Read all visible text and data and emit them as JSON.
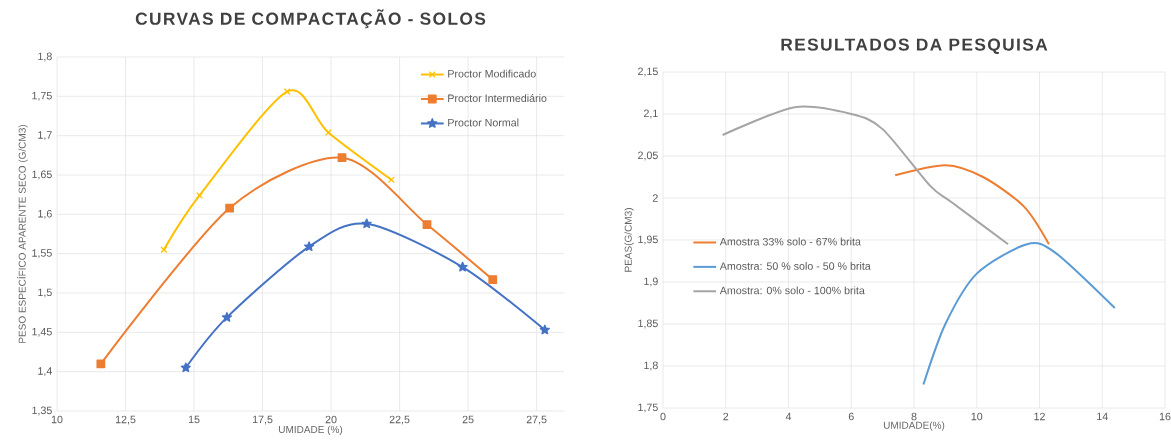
{
  "chart_data": [
    {
      "type": "line",
      "title": "CURVAS DE COMPACTAÇÃO - SOLOS",
      "xlabel": "UMIDADE (%)",
      "ylabel": "PESO ESPECÍFICO APARENTE SECO (G/CM3)",
      "xlim": [
        10,
        28.5
      ],
      "ylim": [
        1.35,
        1.8
      ],
      "xticks": [
        10,
        {
          "value": 12.5,
          "label": "12,5"
        },
        15,
        {
          "value": 17.5,
          "label": "17,5"
        },
        20,
        {
          "value": 22.5,
          "label": "22,5"
        },
        25,
        {
          "value": 27.5,
          "label": "27,5"
        }
      ],
      "yticks": [
        {
          "value": 1.35,
          "label": "1,35"
        },
        {
          "value": 1.4,
          "label": "1,4"
        },
        {
          "value": 1.45,
          "label": "1,45"
        },
        {
          "value": 1.5,
          "label": "1,5"
        },
        {
          "value": 1.55,
          "label": "1,55"
        },
        {
          "value": 1.6,
          "label": "1,6"
        },
        {
          "value": 1.65,
          "label": "1,65"
        },
        {
          "value": 1.7,
          "label": "1,7"
        },
        {
          "value": 1.75,
          "label": "1,75"
        },
        {
          "value": 1.8,
          "label": "1,8"
        }
      ],
      "grid": true,
      "legend": "top right",
      "series": [
        {
          "name": "Proctor Modificado",
          "color": "#ffc000",
          "marker": "cross",
          "x": [
            13.9,
            15.2,
            18.4,
            19.9,
            22.2
          ],
          "values": [
            1.555,
            1.624,
            1.756,
            1.704,
            1.644
          ]
        },
        {
          "name": "Proctor Intermediário",
          "color": "#ed7d31",
          "marker": "square",
          "x": [
            11.6,
            16.3,
            20.4,
            23.5,
            25.9
          ],
          "values": [
            1.41,
            1.608,
            1.672,
            1.587,
            1.517
          ]
        },
        {
          "name": "Proctor Normal",
          "color": "#4472c4",
          "marker": "star",
          "x": [
            14.7,
            16.2,
            19.2,
            21.3,
            24.8,
            27.8
          ],
          "values": [
            1.405,
            1.469,
            1.559,
            1.588,
            1.533,
            1.453
          ]
        }
      ]
    },
    {
      "type": "line",
      "title": "RESULTADOS DA PESQUISA",
      "xlabel": "UMIDADE(%)",
      "ylabel": "PEAS(G/CM3)",
      "xlim": [
        0,
        16
      ],
      "ylim": [
        1.75,
        2.15
      ],
      "xticks": [
        0,
        2,
        4,
        6,
        8,
        10,
        12,
        14,
        16
      ],
      "yticks": [
        {
          "value": 1.75,
          "label": "1,75"
        },
        {
          "value": 1.8,
          "label": "1,8"
        },
        {
          "value": 1.85,
          "label": "1,85"
        },
        {
          "value": 1.9,
          "label": "1,9"
        },
        {
          "value": 1.95,
          "label": "1,95"
        },
        2,
        {
          "value": 2.05,
          "label": "2,05"
        },
        {
          "value": 2.1,
          "label": "2,1"
        },
        {
          "value": 2.15,
          "label": "2,15"
        }
      ],
      "grid": true,
      "legend": "left",
      "marker": "none",
      "series": [
        {
          "name": "Amostra 33% solo - 67% brita",
          "color": "#ed7d31",
          "x": [
            7.4,
            9.0,
            10.2,
            11.5,
            12.3
          ],
          "values": [
            2.027,
            2.039,
            2.025,
            1.99,
            1.945
          ]
        },
        {
          "name": "Amostra: 50 % solo - 50 % brita",
          "color": "#5b9bd5",
          "x": [
            8.3,
            9.0,
            10.0,
            11.6,
            12.5,
            14.4
          ],
          "values": [
            1.778,
            1.85,
            1.91,
            1.945,
            1.935,
            1.869
          ]
        },
        {
          "name": "Amostra: 0% solo - 100% brita",
          "color": "#a5a5a5",
          "x": [
            1.9,
            4.2,
            6.0,
            7.0,
            8.5,
            9.2,
            11.0
          ],
          "values": [
            2.075,
            2.108,
            2.1,
            2.082,
            2.015,
            1.995,
            1.945
          ]
        }
      ]
    }
  ]
}
